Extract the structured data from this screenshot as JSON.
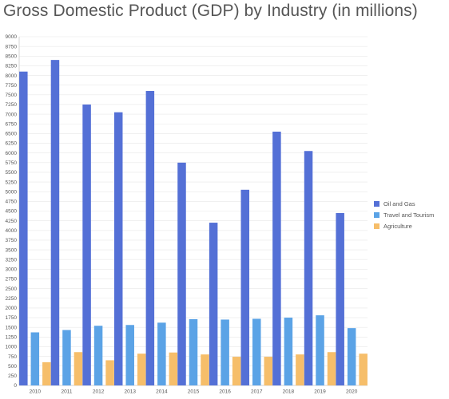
{
  "chart_data": {
    "type": "bar",
    "title": "Gross Domestic Product (GDP) by Industry (in millions)",
    "xlabel": "",
    "ylabel": "",
    "categories": [
      "2010",
      "2011",
      "2012",
      "2013",
      "2014",
      "2015",
      "2016",
      "2017",
      "2018",
      "2019",
      "2020"
    ],
    "series": [
      {
        "name": "Oil and Gas",
        "color": "#5470d6",
        "values": [
          8100,
          8400,
          7250,
          7050,
          7600,
          5750,
          4200,
          5050,
          6550,
          6050,
          4450
        ]
      },
      {
        "name": "Travel and Tourism",
        "color": "#5ba3e6",
        "values": [
          1370,
          1430,
          1540,
          1560,
          1620,
          1710,
          1700,
          1720,
          1750,
          1810,
          1480
        ]
      },
      {
        "name": "Agriculture",
        "color": "#f6be6a",
        "values": [
          600,
          860,
          650,
          820,
          850,
          800,
          740,
          740,
          800,
          860,
          820
        ]
      }
    ],
    "ylim": [
      0,
      9000
    ],
    "ytick_step": 250,
    "grid": true,
    "legend_position": "right"
  }
}
